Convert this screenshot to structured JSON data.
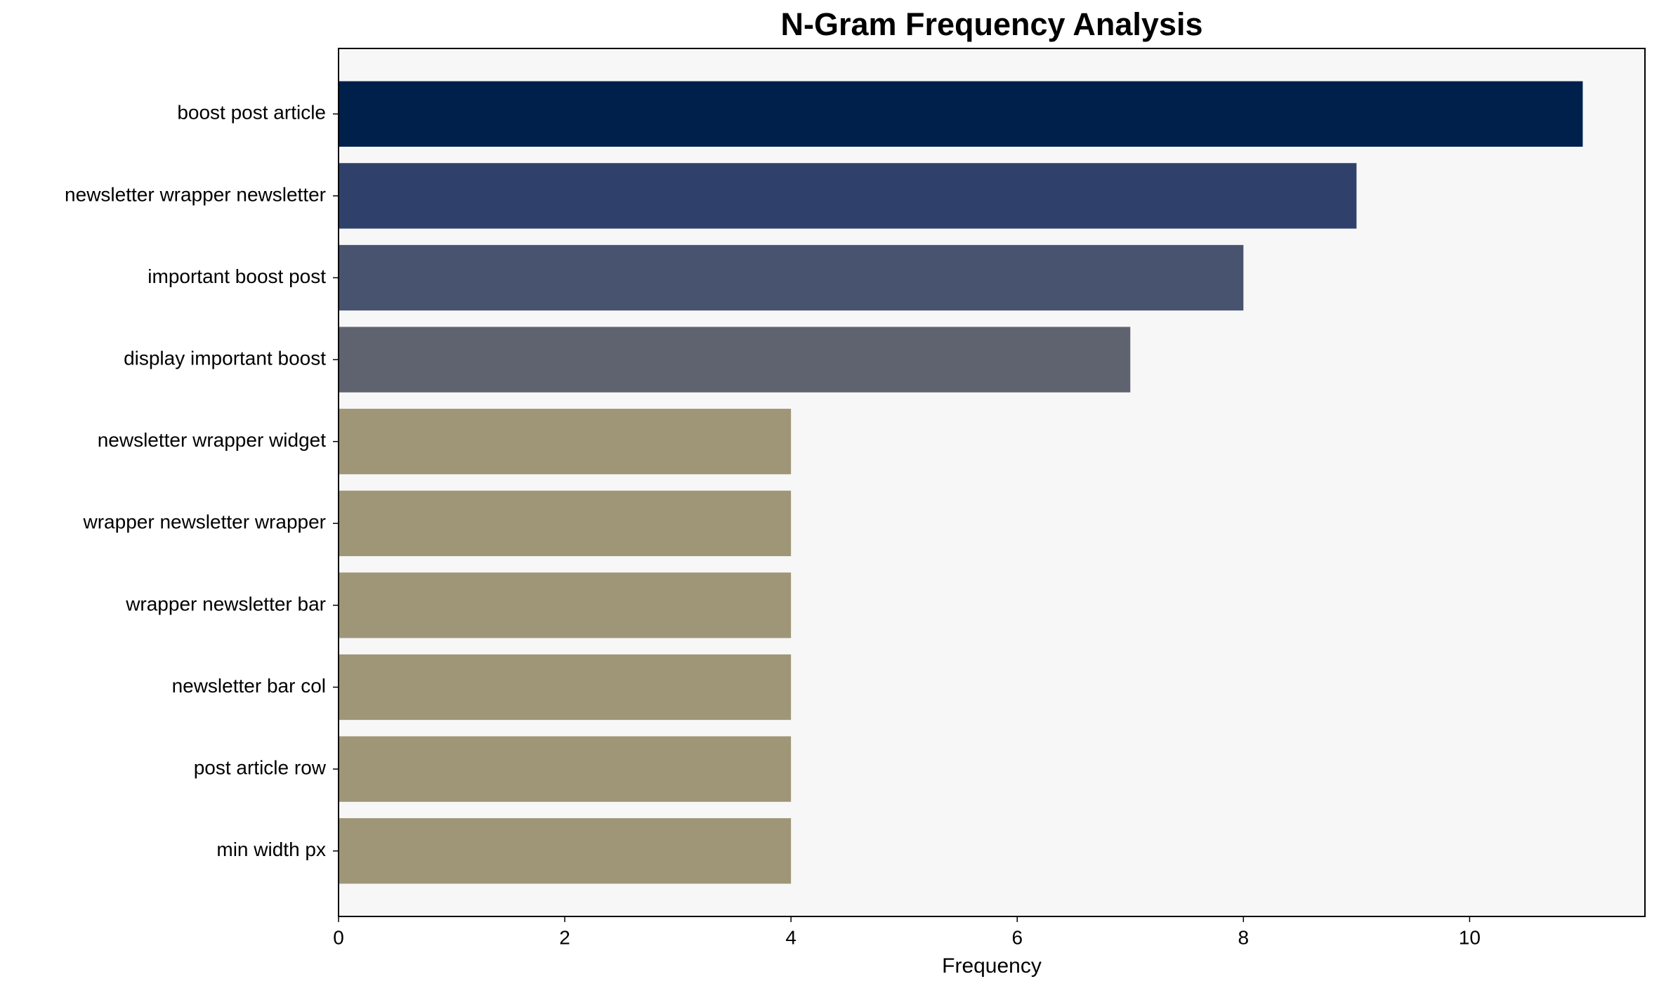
{
  "chart_data": {
    "type": "hbar",
    "title": "N-Gram Frequency Analysis",
    "x_label": "Frequency",
    "categories": [
      "boost post article",
      "newsletter wrapper newsletter",
      "important boost post",
      "display important boost",
      "newsletter wrapper widget",
      "wrapper newsletter wrapper",
      "wrapper newsletter bar",
      "newsletter bar col",
      "post article row",
      "min width px"
    ],
    "values": [
      11,
      9,
      8,
      7,
      4,
      4,
      4,
      4,
      4,
      4
    ],
    "colors": [
      "#00204c",
      "#2f416b",
      "#48536f",
      "#5f6370",
      "#9e9677",
      "#9e9677",
      "#9e9677",
      "#9e9677",
      "#9e9677",
      "#9e9677"
    ],
    "xlim": [
      0,
      11.55
    ],
    "xticks": [
      0,
      2,
      4,
      6,
      8,
      10
    ],
    "grid": false
  }
}
